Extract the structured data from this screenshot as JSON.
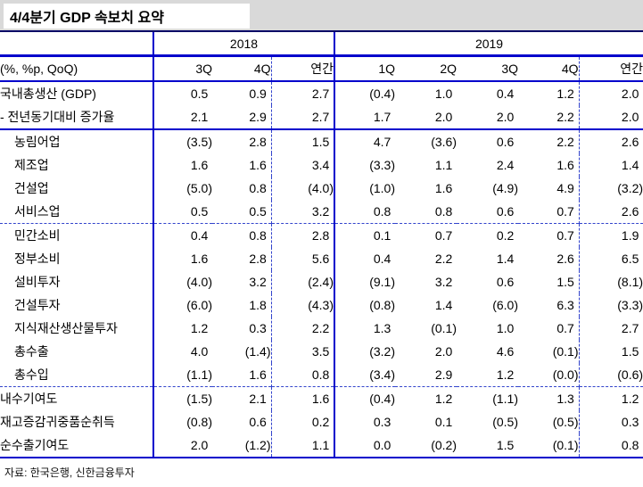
{
  "header": {
    "title": "4/4분기 GDP 속보치 요약"
  },
  "table": {
    "unit_label": "(%, %p, QoQ)",
    "year_groups": [
      {
        "label": "2018",
        "span": 3
      },
      {
        "label": "2019",
        "span": 5
      }
    ],
    "quarter_headers": [
      "3Q",
      "4Q",
      "연간",
      "1Q",
      "2Q",
      "3Q",
      "4Q",
      "연간"
    ],
    "sections": [
      {
        "divider_before": "none",
        "rows": [
          {
            "label": "국내총생산 (GDP)",
            "indent": false,
            "values": [
              "0.5",
              "0.9",
              "2.7",
              "(0.4)",
              "1.0",
              "0.4",
              "1.2",
              "2.0"
            ]
          },
          {
            "label": "- 전년동기대비 증가율",
            "indent": false,
            "values": [
              "2.1",
              "2.9",
              "2.7",
              "1.7",
              "2.0",
              "2.0",
              "2.2",
              "2.0"
            ]
          }
        ]
      },
      {
        "divider_before": "solid",
        "rows": [
          {
            "label": "농림어업",
            "indent": true,
            "values": [
              "(3.5)",
              "2.8",
              "1.5",
              "4.7",
              "(3.6)",
              "0.6",
              "2.2",
              "2.6"
            ]
          },
          {
            "label": "제조업",
            "indent": true,
            "values": [
              "1.6",
              "1.6",
              "3.4",
              "(3.3)",
              "1.1",
              "2.4",
              "1.6",
              "1.4"
            ]
          },
          {
            "label": "건설업",
            "indent": true,
            "values": [
              "(5.0)",
              "0.8",
              "(4.0)",
              "(1.0)",
              "1.6",
              "(4.9)",
              "4.9",
              "(3.2)"
            ]
          },
          {
            "label": "서비스업",
            "indent": true,
            "values": [
              "0.5",
              "0.5",
              "3.2",
              "0.8",
              "0.8",
              "0.6",
              "0.7",
              "2.6"
            ]
          }
        ]
      },
      {
        "divider_before": "dashed",
        "rows": [
          {
            "label": "민간소비",
            "indent": true,
            "values": [
              "0.4",
              "0.8",
              "2.8",
              "0.1",
              "0.7",
              "0.2",
              "0.7",
              "1.9"
            ]
          },
          {
            "label": "정부소비",
            "indent": true,
            "values": [
              "1.6",
              "2.8",
              "5.6",
              "0.4",
              "2.2",
              "1.4",
              "2.6",
              "6.5"
            ]
          },
          {
            "label": "설비투자",
            "indent": true,
            "values": [
              "(4.0)",
              "3.2",
              "(2.4)",
              "(9.1)",
              "3.2",
              "0.6",
              "1.5",
              "(8.1)"
            ]
          },
          {
            "label": "건설투자",
            "indent": true,
            "values": [
              "(6.0)",
              "1.8",
              "(4.3)",
              "(0.8)",
              "1.4",
              "(6.0)",
              "6.3",
              "(3.3)"
            ]
          },
          {
            "label": "지식재산생산물투자",
            "indent": true,
            "values": [
              "1.2",
              "0.3",
              "2.2",
              "1.3",
              "(0.1)",
              "1.0",
              "0.7",
              "2.7"
            ]
          },
          {
            "label": "총수출",
            "indent": true,
            "values": [
              "4.0",
              "(1.4)",
              "3.5",
              "(3.2)",
              "2.0",
              "4.6",
              "(0.1)",
              "1.5"
            ]
          },
          {
            "label": "총수입",
            "indent": true,
            "values": [
              "(1.1)",
              "1.6",
              "0.8",
              "(3.4)",
              "2.9",
              "1.2",
              "(0.0)",
              "(0.6)"
            ]
          }
        ]
      },
      {
        "divider_before": "dashed",
        "rows": [
          {
            "label": "내수기여도",
            "indent": false,
            "values": [
              "(1.5)",
              "2.1",
              "1.6",
              "(0.4)",
              "1.2",
              "(1.1)",
              "1.3",
              "1.2"
            ]
          },
          {
            "label": "재고증감귀중품순취득",
            "indent": false,
            "values": [
              "(0.8)",
              "0.6",
              "0.2",
              "0.3",
              "0.1",
              "(0.5)",
              "(0.5)",
              "0.3"
            ]
          },
          {
            "label": "순수출기여도",
            "indent": false,
            "values": [
              "2.0",
              "(1.2)",
              "1.1",
              "0.0",
              "(0.2)",
              "1.5",
              "(0.1)",
              "0.8"
            ]
          }
        ]
      }
    ]
  },
  "footer": {
    "source": "자료: 한국은행, 신한금융투자"
  },
  "colors": {
    "band_bg": "#d9d9d9",
    "band_line": "#000066",
    "table_line": "#0000cc",
    "dashed_line": "#3344cc",
    "text": "#000000"
  }
}
